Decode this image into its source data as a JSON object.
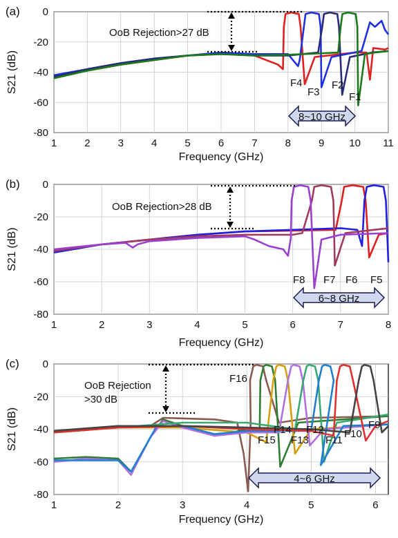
{
  "chart_data": [
    {
      "panel": "(a)",
      "type": "line",
      "xlabel": "Frequency (GHz)",
      "ylabel": "S21 (dB)",
      "xlim": [
        1,
        11
      ],
      "ylim": [
        -80,
        0
      ],
      "xticks": [
        "1",
        "2",
        "3",
        "4",
        "5",
        "6",
        "7",
        "8",
        "9",
        "10",
        "11"
      ],
      "yticks": [
        "0",
        "-20",
        "-40",
        "-60",
        "-80"
      ],
      "grid": true,
      "annotations": {
        "rejection": "OoB Rejection>27 dB",
        "rejection_db": 27,
        "band": "8~10 GHz",
        "band_range": [
          8,
          10
        ]
      },
      "filter_labels": [
        "F4",
        "F3",
        "F2",
        "F1"
      ],
      "series": [
        {
          "color": "#e02020",
          "center": 8.15,
          "width": 0.55,
          "base": [
            [
              1,
              -43
            ],
            [
              2,
              -39
            ],
            [
              3,
              -35
            ],
            [
              4,
              -32
            ],
            [
              5,
              -29
            ],
            [
              6,
              -27.5
            ],
            [
              7,
              -29
            ],
            [
              7.7,
              -35
            ],
            [
              7.85,
              -38
            ]
          ],
          "notch": [
            8.5,
            -48
          ],
          "tail": [
            [
              8.8,
              -30
            ],
            [
              10,
              -27
            ],
            [
              10.35,
              -27
            ],
            [
              10.45,
              -45
            ],
            [
              10.55,
              -24
            ],
            [
              10.9,
              -25
            ],
            [
              11,
              -24
            ]
          ]
        },
        {
          "color": "#2030e0",
          "center": 8.75,
          "width": 0.55,
          "base": [
            [
              1,
              -42
            ],
            [
              2,
              -38
            ],
            [
              3,
              -34
            ],
            [
              4,
              -31
            ],
            [
              5,
              -29
            ],
            [
              6,
              -27
            ],
            [
              7,
              -28
            ],
            [
              8,
              -28
            ],
            [
              8.3,
              -36
            ],
            [
              8.35,
              -32
            ]
          ],
          "notch": [
            9.0,
            -50
          ],
          "tail": [
            [
              9.3,
              -30
            ],
            [
              10.2,
              -26
            ],
            [
              10.45,
              -7
            ],
            [
              10.6,
              -10
            ],
            [
              10.8,
              -6
            ],
            [
              10.9,
              -12
            ],
            [
              11,
              -15
            ]
          ]
        },
        {
          "color": "#2a2a7a",
          "center": 9.3,
          "width": 0.55,
          "base": [
            [
              1,
              -43
            ],
            [
              2,
              -38
            ],
            [
              3,
              -34
            ],
            [
              4,
              -31
            ],
            [
              5,
              -29
            ],
            [
              6,
              -28
            ],
            [
              7,
              -29
            ],
            [
              8,
              -29
            ],
            [
              8.9,
              -27
            ]
          ],
          "notch": [
            9.62,
            -55
          ],
          "tail": [
            [
              9.85,
              -30
            ],
            [
              10.5,
              -27
            ],
            [
              11,
              -26
            ]
          ]
        },
        {
          "color": "#1a7a1a",
          "center": 9.85,
          "width": 0.55,
          "base": [
            [
              1,
              -44
            ],
            [
              2,
              -39
            ],
            [
              3,
              -35
            ],
            [
              4,
              -32
            ],
            [
              5,
              -29
            ],
            [
              6,
              -28
            ],
            [
              7,
              -29
            ],
            [
              8,
              -28.5
            ],
            [
              9,
              -27.5
            ],
            [
              9.5,
              -27
            ]
          ],
          "notch": [
            10.1,
            -62
          ],
          "tail": [
            [
              10.3,
              -28
            ],
            [
              10.6,
              -27
            ],
            [
              11,
              -26
            ]
          ]
        }
      ]
    },
    {
      "panel": "(b)",
      "type": "line",
      "xlabel": "Frequency (GHz)",
      "ylabel": "S21 (dB)",
      "xlim": [
        1,
        8
      ],
      "ylim": [
        -80,
        0
      ],
      "xticks": [
        "1",
        "2",
        "3",
        "4",
        "5",
        "6",
        "7",
        "8"
      ],
      "yticks": [
        "0",
        "-20",
        "-40",
        "-60",
        "-80"
      ],
      "grid": true,
      "annotations": {
        "rejection": "OoB Rejection>28 dB",
        "rejection_db": 28,
        "band": "6~8 GHz",
        "band_range": [
          6,
          8
        ]
      },
      "filter_labels": [
        "F8",
        "F7",
        "F6",
        "F5"
      ],
      "series": [
        {
          "color": "#e02020",
          "center": 7.3,
          "width": 0.55,
          "base": [
            [
              1,
              -41
            ],
            [
              2,
              -37
            ],
            [
              3,
              -34
            ],
            [
              4,
              -31
            ],
            [
              5,
              -29
            ],
            [
              6,
              -28.5
            ],
            [
              6.9,
              -28
            ]
          ],
          "notch": [
            7.6,
            -45
          ],
          "tail": [
            [
              7.8,
              -31
            ],
            [
              8,
              -30
            ]
          ]
        },
        {
          "color": "#2020e0",
          "center": 7.75,
          "width": 0.5,
          "base": [
            [
              1,
              -42
            ],
            [
              2,
              -37
            ],
            [
              3,
              -34
            ],
            [
              4,
              -31
            ],
            [
              5,
              -29
            ],
            [
              6,
              -28
            ],
            [
              7,
              -27
            ],
            [
              7.35,
              -28
            ],
            [
              7.45,
              -38
            ]
          ],
          "notch": [
            8.0,
            -48
          ],
          "tail": [
            [
              8.1,
              -38
            ]
          ]
        },
        {
          "color": "#a03a60",
          "center": 6.65,
          "width": 0.5,
          "base": [
            [
              1,
              -41
            ],
            [
              2,
              -37
            ],
            [
              3,
              -34
            ],
            [
              4,
              -32
            ],
            [
              5,
              -31
            ],
            [
              6,
              -31
            ],
            [
              6.2,
              -30
            ]
          ],
          "notch": [
            6.88,
            -50
          ],
          "tail": [
            [
              7.1,
              -30
            ],
            [
              8,
              -27
            ]
          ]
        },
        {
          "color": "#9a40d0",
          "center": 6.2,
          "width": 0.45,
          "base": [
            [
              1,
              -40
            ],
            [
              2,
              -37
            ],
            [
              2.5,
              -36
            ],
            [
              2.65,
              -39
            ],
            [
              2.75,
              -37
            ],
            [
              3,
              -35
            ],
            [
              4,
              -33
            ],
            [
              5,
              -32
            ],
            [
              5.2,
              -34
            ],
            [
              5.5,
              -38
            ],
            [
              5.8,
              -40
            ],
            [
              5.9,
              -44
            ],
            [
              5.96,
              -33
            ]
          ],
          "notch": [
            6.45,
            -64
          ],
          "tail": [
            [
              6.6,
              -34
            ],
            [
              7,
              -31
            ],
            [
              8,
              -30
            ]
          ]
        }
      ]
    },
    {
      "panel": "(c)",
      "type": "line",
      "xlabel": "Frequency (GHz)",
      "ylabel": "S21 (dB)",
      "xlim": [
        1,
        6.2
      ],
      "ylim": [
        -80,
        0
      ],
      "xticks": [
        "1",
        "2",
        "3",
        "4",
        "5",
        "6"
      ],
      "yticks": [
        "0",
        "-20",
        "-40",
        "-60",
        "-80"
      ],
      "grid": true,
      "annotations": {
        "rejection": "OoB Rejection\n>30 dB",
        "rejection_db": 30,
        "band": "4~6 GHz",
        "band_range": [
          4,
          6
        ]
      },
      "filter_labels": [
        "F16",
        "F15",
        "F14",
        "F13",
        "F12",
        "F11",
        "F10",
        "F9"
      ],
      "series": [
        {
          "color": "#8a5a50",
          "center": 4.2,
          "width": 0.3,
          "base": [
            [
              1,
              -41
            ],
            [
              2,
              -38
            ],
            [
              2.5,
              -38
            ],
            [
              2.7,
              -33
            ],
            [
              3.5,
              -34
            ],
            [
              3.85,
              -36
            ],
            [
              3.95,
              -55
            ],
            [
              4.02,
              -78
            ],
            [
              4.06,
              -36
            ]
          ],
          "notch": [
            4.5,
            -36
          ],
          "tail": [
            [
              5,
              -33
            ],
            [
              6.2,
              -32
            ]
          ]
        },
        {
          "color": "#2e7d32",
          "center": 4.35,
          "width": 0.28,
          "base": [
            [
              1,
              -58
            ],
            [
              1.5,
              -57
            ],
            [
              2,
              -58
            ],
            [
              2.2,
              -66
            ],
            [
              2.3,
              -60
            ],
            [
              2.5,
              -45
            ],
            [
              2.7,
              -34
            ],
            [
              3,
              -38
            ],
            [
              3.5,
              -44
            ],
            [
              4,
              -40
            ],
            [
              4.2,
              -40
            ]
          ],
          "notch": [
            4.52,
            -63
          ],
          "tail": [
            [
              4.8,
              -36
            ],
            [
              6.2,
              -32
            ]
          ]
        },
        {
          "color": "#d4a010",
          "center": 4.55,
          "width": 0.28,
          "base": [
            [
              1,
              -42
            ],
            [
              2,
              -39
            ],
            [
              3,
              -39
            ],
            [
              4,
              -42
            ],
            [
              4.3,
              -48
            ]
          ],
          "notch": [
            4.75,
            -55
          ],
          "tail": [
            [
              5,
              -40
            ],
            [
              6.2,
              -37
            ]
          ]
        },
        {
          "color": "#b070e0",
          "center": 4.78,
          "width": 0.28,
          "base": [
            [
              1,
              -60
            ],
            [
              1.5,
              -58
            ],
            [
              2,
              -59
            ],
            [
              2.2,
              -68
            ],
            [
              2.3,
              -60
            ],
            [
              2.5,
              -45
            ],
            [
              2.7,
              -35
            ],
            [
              3,
              -39
            ],
            [
              3.5,
              -44
            ],
            [
              4,
              -42
            ],
            [
              4.5,
              -42
            ]
          ],
          "notch": [
            4.98,
            -50
          ],
          "tail": [
            [
              5.2,
              -40
            ],
            [
              6.2,
              -37
            ]
          ]
        },
        {
          "color": "#3aa870",
          "center": 5.02,
          "width": 0.28,
          "base": [
            [
              1,
              -42
            ],
            [
              2,
              -39
            ],
            [
              3,
              -36
            ],
            [
              4,
              -36
            ],
            [
              4.75,
              -40
            ]
          ],
          "notch": [
            5.2,
            -60
          ],
          "tail": [
            [
              5.4,
              -36
            ],
            [
              6.2,
              -31
            ]
          ]
        },
        {
          "color": "#2080d0",
          "center": 5.26,
          "width": 0.28,
          "base": [
            [
              1,
              -59
            ],
            [
              2,
              -59
            ],
            [
              2.2,
              -66
            ],
            [
              2.4,
              -52
            ],
            [
              2.6,
              -38
            ],
            [
              3,
              -38
            ],
            [
              3.5,
              -43
            ],
            [
              4,
              -41
            ],
            [
              5,
              -41
            ]
          ],
          "notch": [
            5.15,
            -62
          ],
          "tail": [
            [
              5.5,
              -38
            ],
            [
              6.2,
              -37
            ]
          ]
        },
        {
          "color": "#e03030",
          "center": 5.55,
          "width": 0.3,
          "base": [
            [
              1,
              -42
            ],
            [
              2,
              -39
            ],
            [
              3,
              -38
            ],
            [
              4,
              -40
            ],
            [
              5,
              -41
            ],
            [
              5.35,
              -44
            ]
          ],
          "notch": [
            5.85,
            -47
          ],
          "tail": [
            [
              6,
              -38
            ],
            [
              6.2,
              -35
            ]
          ]
        },
        {
          "color": "#444444",
          "center": 5.88,
          "width": 0.28,
          "base": [
            [
              1,
              -41
            ],
            [
              2,
              -38
            ],
            [
              3,
              -38
            ],
            [
              4,
              -39
            ],
            [
              5,
              -40
            ],
            [
              5.6,
              -42
            ]
          ],
          "notch": [
            6.1,
            -42
          ],
          "tail": [
            [
              6.2,
              -38
            ]
          ]
        }
      ]
    }
  ]
}
